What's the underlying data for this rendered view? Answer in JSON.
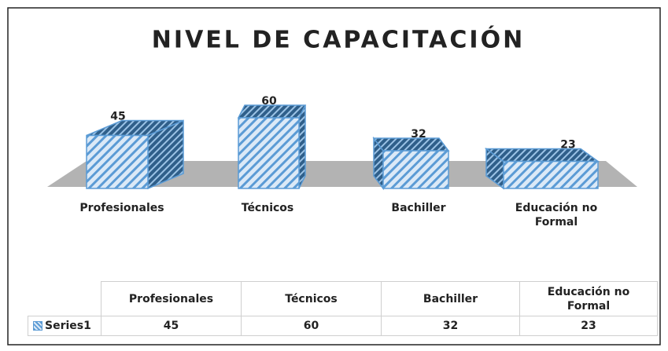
{
  "chart_data": {
    "type": "bar3d",
    "title": "NIVEL DE CAPACITACIÓN",
    "categories": [
      "Profesionales",
      "Técnicos",
      "Bachiller",
      "Educación no Formal"
    ],
    "series": [
      {
        "name": "Series1",
        "color": "#5b9bd5",
        "values": [
          45,
          60,
          32,
          23
        ]
      }
    ],
    "data_table": true
  }
}
